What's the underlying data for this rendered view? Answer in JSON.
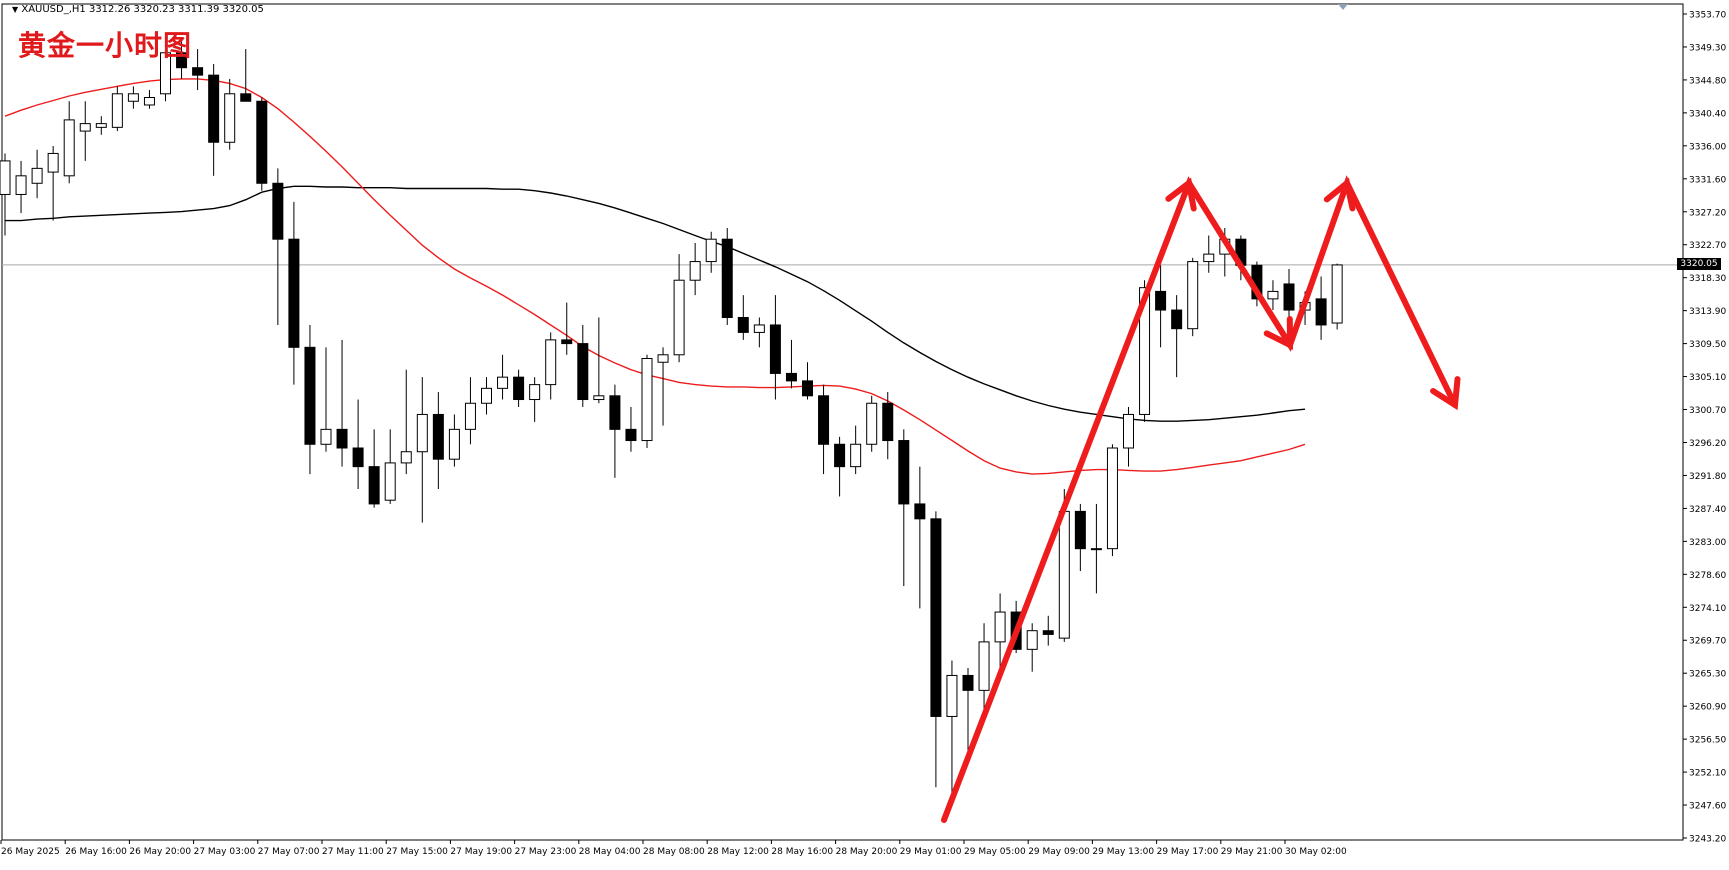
{
  "header": {
    "symbol_info": "XAUUSD_,H1  3312.26 3320.23 3311.39 3320.05",
    "title": "黄金一小时图"
  },
  "current_price_label": "3320.05",
  "chart_data": {
    "type": "candlestick",
    "symbol": "XAUUSD_",
    "timeframe": "H1",
    "ylim": [
      3243.2,
      3353.7
    ],
    "y_ticks": [
      "3353.70",
      "3349.30",
      "3344.80",
      "3340.40",
      "3336.00",
      "3331.60",
      "3327.20",
      "3322.70",
      "3318.30",
      "3313.90",
      "3309.50",
      "3305.10",
      "3300.70",
      "3296.20",
      "3291.80",
      "3287.40",
      "3283.00",
      "3278.60",
      "3274.10",
      "3269.70",
      "3265.30",
      "3260.90",
      "3256.50",
      "3252.10",
      "3247.60",
      "3243.20"
    ],
    "x_ticks": [
      {
        "i": 0,
        "label": "26 May 2025"
      },
      {
        "i": 4,
        "label": "26 May 16:00"
      },
      {
        "i": 8,
        "label": "26 May 20:00"
      },
      {
        "i": 12,
        "label": "27 May 03:00"
      },
      {
        "i": 16,
        "label": "27 May 07:00"
      },
      {
        "i": 20,
        "label": "27 May 11:00"
      },
      {
        "i": 24,
        "label": "27 May 15:00"
      },
      {
        "i": 28,
        "label": "27 May 19:00"
      },
      {
        "i": 32,
        "label": "27 May 23:00"
      },
      {
        "i": 36,
        "label": "28 May 04:00"
      },
      {
        "i": 40,
        "label": "28 May 08:00"
      },
      {
        "i": 44,
        "label": "28 May 12:00"
      },
      {
        "i": 48,
        "label": "28 May 16:00"
      },
      {
        "i": 52,
        "label": "28 May 20:00"
      },
      {
        "i": 56,
        "label": "29 May 01:00"
      },
      {
        "i": 60,
        "label": "29 May 05:00"
      },
      {
        "i": 64,
        "label": "29 May 09:00"
      },
      {
        "i": 68,
        "label": "29 May 13:00"
      },
      {
        "i": 72,
        "label": "29 May 17:00"
      },
      {
        "i": 76,
        "label": "29 May 21:00"
      },
      {
        "i": 80,
        "label": "30 May 02:00"
      }
    ],
    "current_price": 3320.05,
    "candles": [
      [
        3329.5,
        3335.0,
        3324.0,
        3334.0
      ],
      [
        3329.5,
        3334.0,
        3327.0,
        3332.0
      ],
      [
        3331.0,
        3335.5,
        3329.0,
        3333.0
      ],
      [
        3332.5,
        3336.0,
        3326.0,
        3335.0
      ],
      [
        3332.0,
        3342.0,
        3331.0,
        3339.5
      ],
      [
        3338.0,
        3342.0,
        3334.0,
        3339.0
      ],
      [
        3338.5,
        3340.0,
        3337.5,
        3339.0
      ],
      [
        3338.5,
        3344.0,
        3338.0,
        3343.0
      ],
      [
        3342.0,
        3344.0,
        3341.0,
        3343.0
      ],
      [
        3341.5,
        3343.5,
        3341.0,
        3342.5
      ],
      [
        3343.0,
        3350.5,
        3342.0,
        3348.5
      ],
      [
        3348.5,
        3350.0,
        3345.0,
        3346.5
      ],
      [
        3346.5,
        3349.0,
        3343.5,
        3345.5
      ],
      [
        3345.5,
        3347.0,
        3332.0,
        3336.5
      ],
      [
        3336.5,
        3345.0,
        3335.5,
        3343.0
      ],
      [
        3343.0,
        3349.0,
        3342.0,
        3342.0
      ],
      [
        3342.0,
        3342.5,
        3330.0,
        3331.0
      ],
      [
        3331.0,
        3333.0,
        3312.0,
        3323.5
      ],
      [
        3323.5,
        3328.5,
        3304.0,
        3309.0
      ],
      [
        3309.0,
        3312.0,
        3292.0,
        3296.0
      ],
      [
        3296.0,
        3309.0,
        3295.0,
        3298.0
      ],
      [
        3298.0,
        3310.0,
        3293.0,
        3295.5
      ],
      [
        3295.5,
        3302.0,
        3290.0,
        3293.0
      ],
      [
        3293.0,
        3298.0,
        3287.5,
        3288.0
      ],
      [
        3288.5,
        3298.0,
        3288.0,
        3293.5
      ],
      [
        3293.5,
        3306.0,
        3292.0,
        3295.0
      ],
      [
        3295.0,
        3305.0,
        3285.5,
        3300.0
      ],
      [
        3300.0,
        3303.0,
        3290.0,
        3294.0
      ],
      [
        3294.0,
        3300.0,
        3293.0,
        3298.0
      ],
      [
        3298.0,
        3305.0,
        3296.0,
        3301.5
      ],
      [
        3301.5,
        3305.0,
        3300.0,
        3303.5
      ],
      [
        3303.5,
        3308.0,
        3302.0,
        3305.0
      ],
      [
        3305.0,
        3306.0,
        3301.0,
        3302.0
      ],
      [
        3302.0,
        3305.0,
        3299.0,
        3304.0
      ],
      [
        3304.0,
        3311.0,
        3302.0,
        3310.0
      ],
      [
        3310.0,
        3315.0,
        3308.0,
        3309.5
      ],
      [
        3309.5,
        3312.0,
        3301.0,
        3302.0
      ],
      [
        3302.0,
        3313.0,
        3301.5,
        3302.5
      ],
      [
        3302.5,
        3304.0,
        3291.5,
        3298.0
      ],
      [
        3298.0,
        3301.0,
        3295.0,
        3296.5
      ],
      [
        3296.5,
        3308.0,
        3295.5,
        3307.5
      ],
      [
        3307.0,
        3309.0,
        3298.5,
        3308.0
      ],
      [
        3308.0,
        3321.5,
        3307.0,
        3318.0
      ],
      [
        3318.0,
        3323.0,
        3316.0,
        3320.5
      ],
      [
        3320.5,
        3324.5,
        3319.0,
        3323.5
      ],
      [
        3323.5,
        3325.0,
        3312.0,
        3313.0
      ],
      [
        3313.0,
        3316.0,
        3310.0,
        3311.0
      ],
      [
        3311.0,
        3313.0,
        3309.0,
        3312.0
      ],
      [
        3312.0,
        3316.0,
        3302.0,
        3305.5
      ],
      [
        3305.5,
        3310.0,
        3303.5,
        3304.5
      ],
      [
        3304.5,
        3307.0,
        3302.0,
        3302.5
      ],
      [
        3302.5,
        3304.0,
        3292.0,
        3296.0
      ],
      [
        3296.0,
        3297.0,
        3289.0,
        3293.0
      ],
      [
        3293.0,
        3298.5,
        3292.0,
        3296.0
      ],
      [
        3296.0,
        3302.5,
        3295.0,
        3301.5
      ],
      [
        3301.5,
        3303.0,
        3294.0,
        3296.5
      ],
      [
        3296.5,
        3298.0,
        3277.0,
        3288.0
      ],
      [
        3288.0,
        3293.0,
        3274.0,
        3286.0
      ],
      [
        3286.0,
        3287.0,
        3250.0,
        3259.5
      ],
      [
        3259.5,
        3267.0,
        3248.0,
        3265.0
      ],
      [
        3265.0,
        3266.0,
        3254.0,
        3263.0
      ],
      [
        3263.0,
        3272.0,
        3260.0,
        3269.5
      ],
      [
        3269.5,
        3276.0,
        3266.0,
        3273.5
      ],
      [
        3273.5,
        3275.0,
        3268.0,
        3268.5
      ],
      [
        3268.5,
        3272.0,
        3265.5,
        3271.0
      ],
      [
        3271.0,
        3273.0,
        3269.0,
        3270.5
      ],
      [
        3270.0,
        3290.0,
        3269.5,
        3287.0
      ],
      [
        3287.0,
        3288.0,
        3279.0,
        3282.0
      ],
      [
        3282.0,
        3288.0,
        3276.0,
        3282.0
      ],
      [
        3282.0,
        3296.0,
        3281.0,
        3295.5
      ],
      [
        3295.5,
        3301.0,
        3293.0,
        3300.0
      ],
      [
        3300.0,
        3318.0,
        3299.0,
        3317.0
      ],
      [
        3316.5,
        3320.0,
        3309.0,
        3314.0
      ],
      [
        3314.0,
        3316.0,
        3305.0,
        3311.5
      ],
      [
        3311.5,
        3321.0,
        3310.5,
        3320.5
      ],
      [
        3320.5,
        3324.0,
        3319.0,
        3321.5
      ],
      [
        3321.5,
        3325.0,
        3318.5,
        3323.5
      ],
      [
        3323.5,
        3324.0,
        3318.0,
        3320.0
      ],
      [
        3320.0,
        3320.5,
        3314.5,
        3315.5
      ],
      [
        3315.5,
        3318.0,
        3314.0,
        3316.5
      ],
      [
        3317.5,
        3319.5,
        3313.0,
        3314.0
      ],
      [
        3314.0,
        3316.5,
        3312.0,
        3315.0
      ],
      [
        3315.5,
        3318.5,
        3310.0,
        3312.0
      ],
      [
        3312.26,
        3320.23,
        3311.39,
        3320.05
      ]
    ],
    "ma_black": [
      3326,
      3326,
      3326.2,
      3326.3,
      3326.5,
      3326.6,
      3326.7,
      3326.8,
      3326.9,
      3327,
      3327.1,
      3327.2,
      3327.4,
      3327.6,
      3328,
      3328.8,
      3329.8,
      3330.3,
      3330.6,
      3330.6,
      3330.5,
      3330.5,
      3330.4,
      3330.4,
      3330.4,
      3330.3,
      3330.3,
      3330.3,
      3330.3,
      3330.3,
      3330.3,
      3330.2,
      3330.2,
      3330,
      3329.7,
      3329.3,
      3328.8,
      3328.3,
      3327.7,
      3327,
      3326.3,
      3325.6,
      3324.8,
      3324,
      3323.2,
      3322.5,
      3321.6,
      3320.7,
      3319.8,
      3318.8,
      3317.8,
      3316.6,
      3315.3,
      3313.9,
      3312.5,
      3311,
      3309.6,
      3308.3,
      3307.1,
      3306,
      3305,
      3304.1,
      3303.3,
      3302.5,
      3301.8,
      3301.2,
      3300.7,
      3300.3,
      3300,
      3299.7,
      3299.4,
      3299.2,
      3299.1,
      3299.1,
      3299.2,
      3299.3,
      3299.5,
      3299.7,
      3299.9,
      3300.2,
      3300.5,
      3300.7
    ],
    "ma_red": [
      3340,
      3340.8,
      3341.5,
      3342.1,
      3342.7,
      3343.2,
      3343.6,
      3344,
      3344.4,
      3344.7,
      3344.9,
      3345,
      3345,
      3344.8,
      3344.4,
      3343.7,
      3342.5,
      3341,
      3339.2,
      3337.3,
      3335.3,
      3333.2,
      3331,
      3328.8,
      3326.7,
      3324.7,
      3322.7,
      3321,
      3319.5,
      3318.3,
      3317.2,
      3316,
      3314.7,
      3313.4,
      3312,
      3310.6,
      3309.1,
      3307.9,
      3306.9,
      3306,
      3305.3,
      3304.8,
      3304.3,
      3304,
      3303.8,
      3303.7,
      3303.7,
      3303.6,
      3303.6,
      3303.7,
      3303.8,
      3303.9,
      3303.8,
      3303.4,
      3302.8,
      3301.8,
      3300.6,
      3299.3,
      3297.9,
      3296.5,
      3295.1,
      3293.8,
      3292.8,
      3292.3,
      3292,
      3292.1,
      3292.3,
      3292.5,
      3292.6,
      3292.6,
      3292.5,
      3292.4,
      3292.4,
      3292.6,
      3292.9,
      3293.2,
      3293.5,
      3293.8,
      3294.3,
      3294.8,
      3295.3,
      3296
    ]
  }
}
